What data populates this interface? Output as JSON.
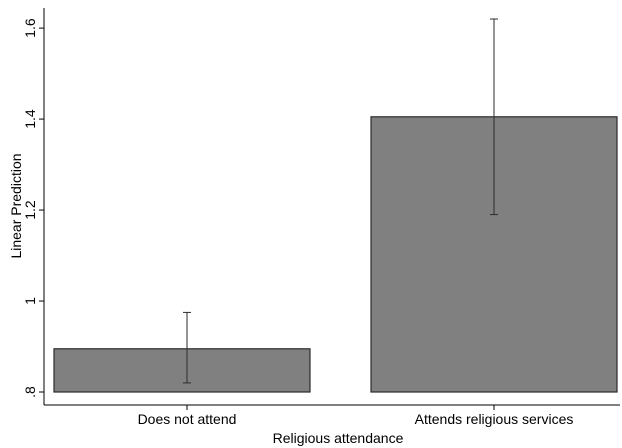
{
  "chart_data": {
    "type": "bar",
    "categories": [
      "Does not attend",
      "Attends religious services"
    ],
    "values": [
      0.895,
      1.405
    ],
    "error_bars": [
      {
        "low": 0.82,
        "high": 0.975
      },
      {
        "low": 1.19,
        "high": 1.62
      }
    ],
    "xlabel": "Religious attendance",
    "ylabel": "Linear Prediction",
    "ylim": [
      0.8,
      1.62
    ],
    "yticks": [
      0.8,
      1.0,
      1.2,
      1.4,
      1.6
    ],
    "ytick_labels": [
      ".8",
      "1",
      "1.2",
      "1.4",
      "1.6"
    ],
    "baseline": 0.8,
    "grid": false,
    "bar_color": "#808080"
  }
}
